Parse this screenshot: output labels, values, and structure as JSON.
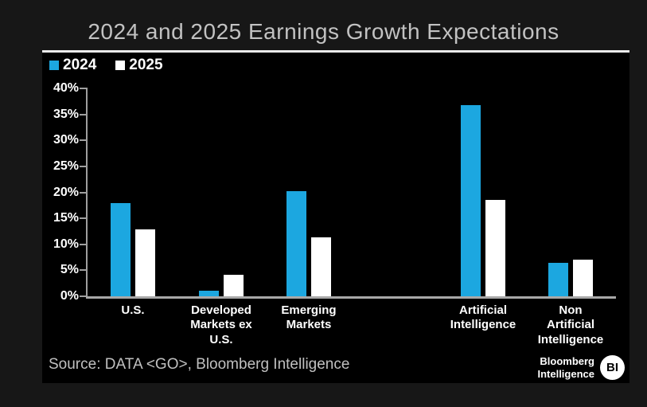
{
  "title": "2024 and 2025 Earnings Growth Expectations",
  "legend": [
    {
      "label": "2024",
      "color": "#1CA7E0"
    },
    {
      "label": "2025",
      "color": "#FFFFFF"
    }
  ],
  "chart_data": {
    "type": "bar",
    "title": "2024 and 2025 Earnings Growth Expectations",
    "categories": [
      "U.S.",
      "Developed Markets ex U.S.",
      "Emerging Markets",
      "Artificial Intelligence",
      "Non Artificial Intelligence"
    ],
    "category_labels": [
      "U.S.",
      "Developed\nMarkets ex\nU.S.",
      "Emerging\nMarkets",
      "Artificial\nIntelligence",
      "Non\nArtificial\nIntelligence"
    ],
    "series": [
      {
        "name": "2024",
        "color": "#1CA7E0",
        "values": [
          18.0,
          1.0,
          20.3,
          36.8,
          6.5
        ]
      },
      {
        "name": "2025",
        "color": "#FFFFFF",
        "values": [
          12.8,
          4.2,
          11.4,
          18.5,
          7.1
        ]
      }
    ],
    "xlabel": "",
    "ylabel": "",
    "ylim": [
      0,
      40
    ],
    "ytick_step": 5,
    "ytick_labels": [
      "0%",
      "5%",
      "10%",
      "15%",
      "20%",
      "25%",
      "30%",
      "35%",
      "40%"
    ],
    "grid": false,
    "legend_position": "top-left",
    "plot_background": "#000000",
    "bar_colors": {
      "2024": "#1CA7E0",
      "2025": "#FFFFFF"
    }
  },
  "source": "Source: DATA <GO>, Bloomberg Intelligence",
  "branding": {
    "name_line1": "Bloomberg",
    "name_line2": "Intelligence",
    "badge": "BI"
  }
}
